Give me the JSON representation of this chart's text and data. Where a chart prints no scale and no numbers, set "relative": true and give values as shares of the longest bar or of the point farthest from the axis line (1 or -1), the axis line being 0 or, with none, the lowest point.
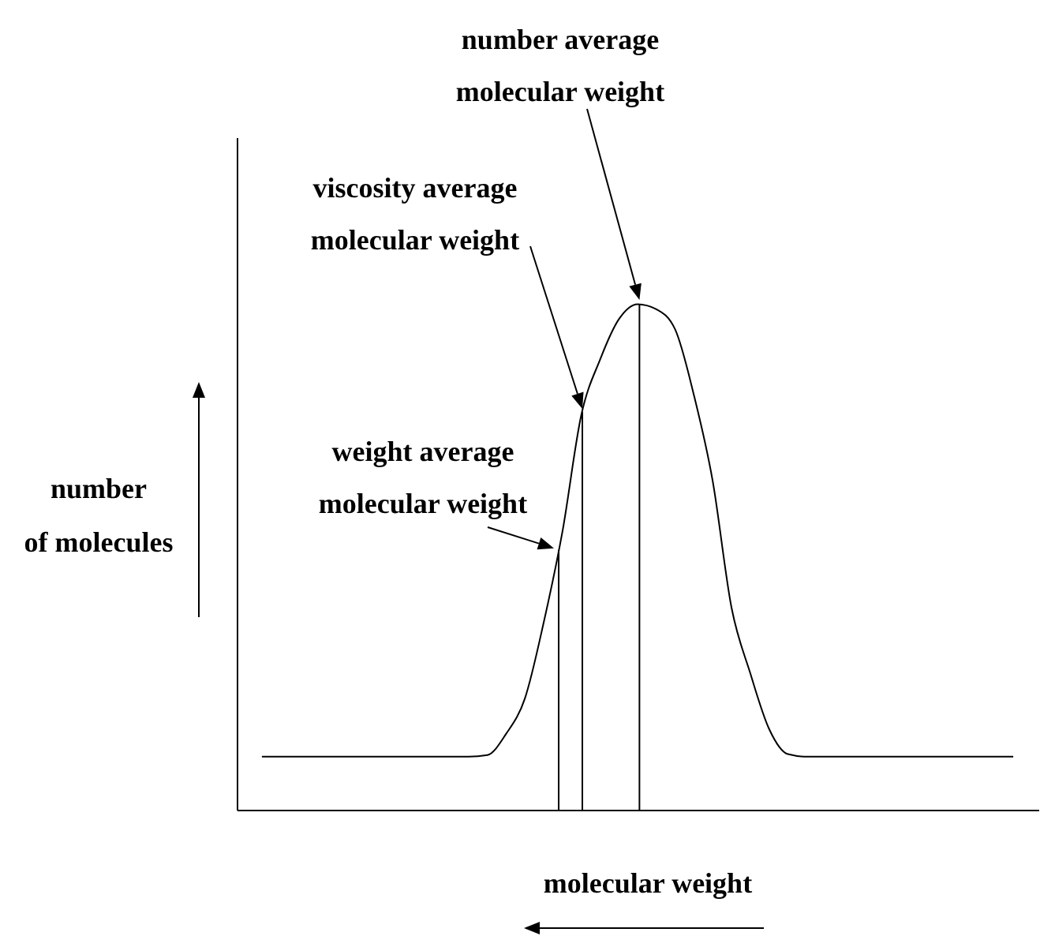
{
  "chart_data": {
    "type": "line",
    "relative": true,
    "line_style": "solid",
    "categories": [
      null,
      null,
      null,
      null,
      null,
      null,
      null,
      null,
      null,
      null,
      null,
      null,
      null,
      null,
      null,
      null,
      null,
      null,
      null,
      null,
      null,
      null,
      null,
      null,
      null,
      null,
      null,
      null,
      null,
      null,
      null,
      null,
      null,
      null,
      null,
      null,
      null,
      null,
      null,
      null,
      null
    ],
    "series": [
      {
        "color": "#000000",
        "values": [
          0.105,
          0.105,
          0.105,
          0.105,
          0.105,
          0.105,
          0.105,
          0.105,
          0.105,
          0.105,
          0.105,
          0.105,
          0.108,
          0.15,
          0.22,
          0.37,
          0.55,
          0.78,
          0.89,
          0.97,
          1.0,
          0.99,
          0.95,
          0.82,
          0.65,
          0.4,
          0.27,
          0.16,
          0.11,
          0.105,
          0.105,
          0.105,
          0.105,
          0.105,
          0.105,
          0.105,
          0.105,
          0.105,
          0.105,
          0.105,
          0.105
        ]
      }
    ],
    "xlabel": "molecular weight",
    "ylabel": "number of molecules",
    "annotations": [
      "weight average molecular weight",
      "viscosity average molecular weight",
      "number average molecular weight"
    ]
  }
}
